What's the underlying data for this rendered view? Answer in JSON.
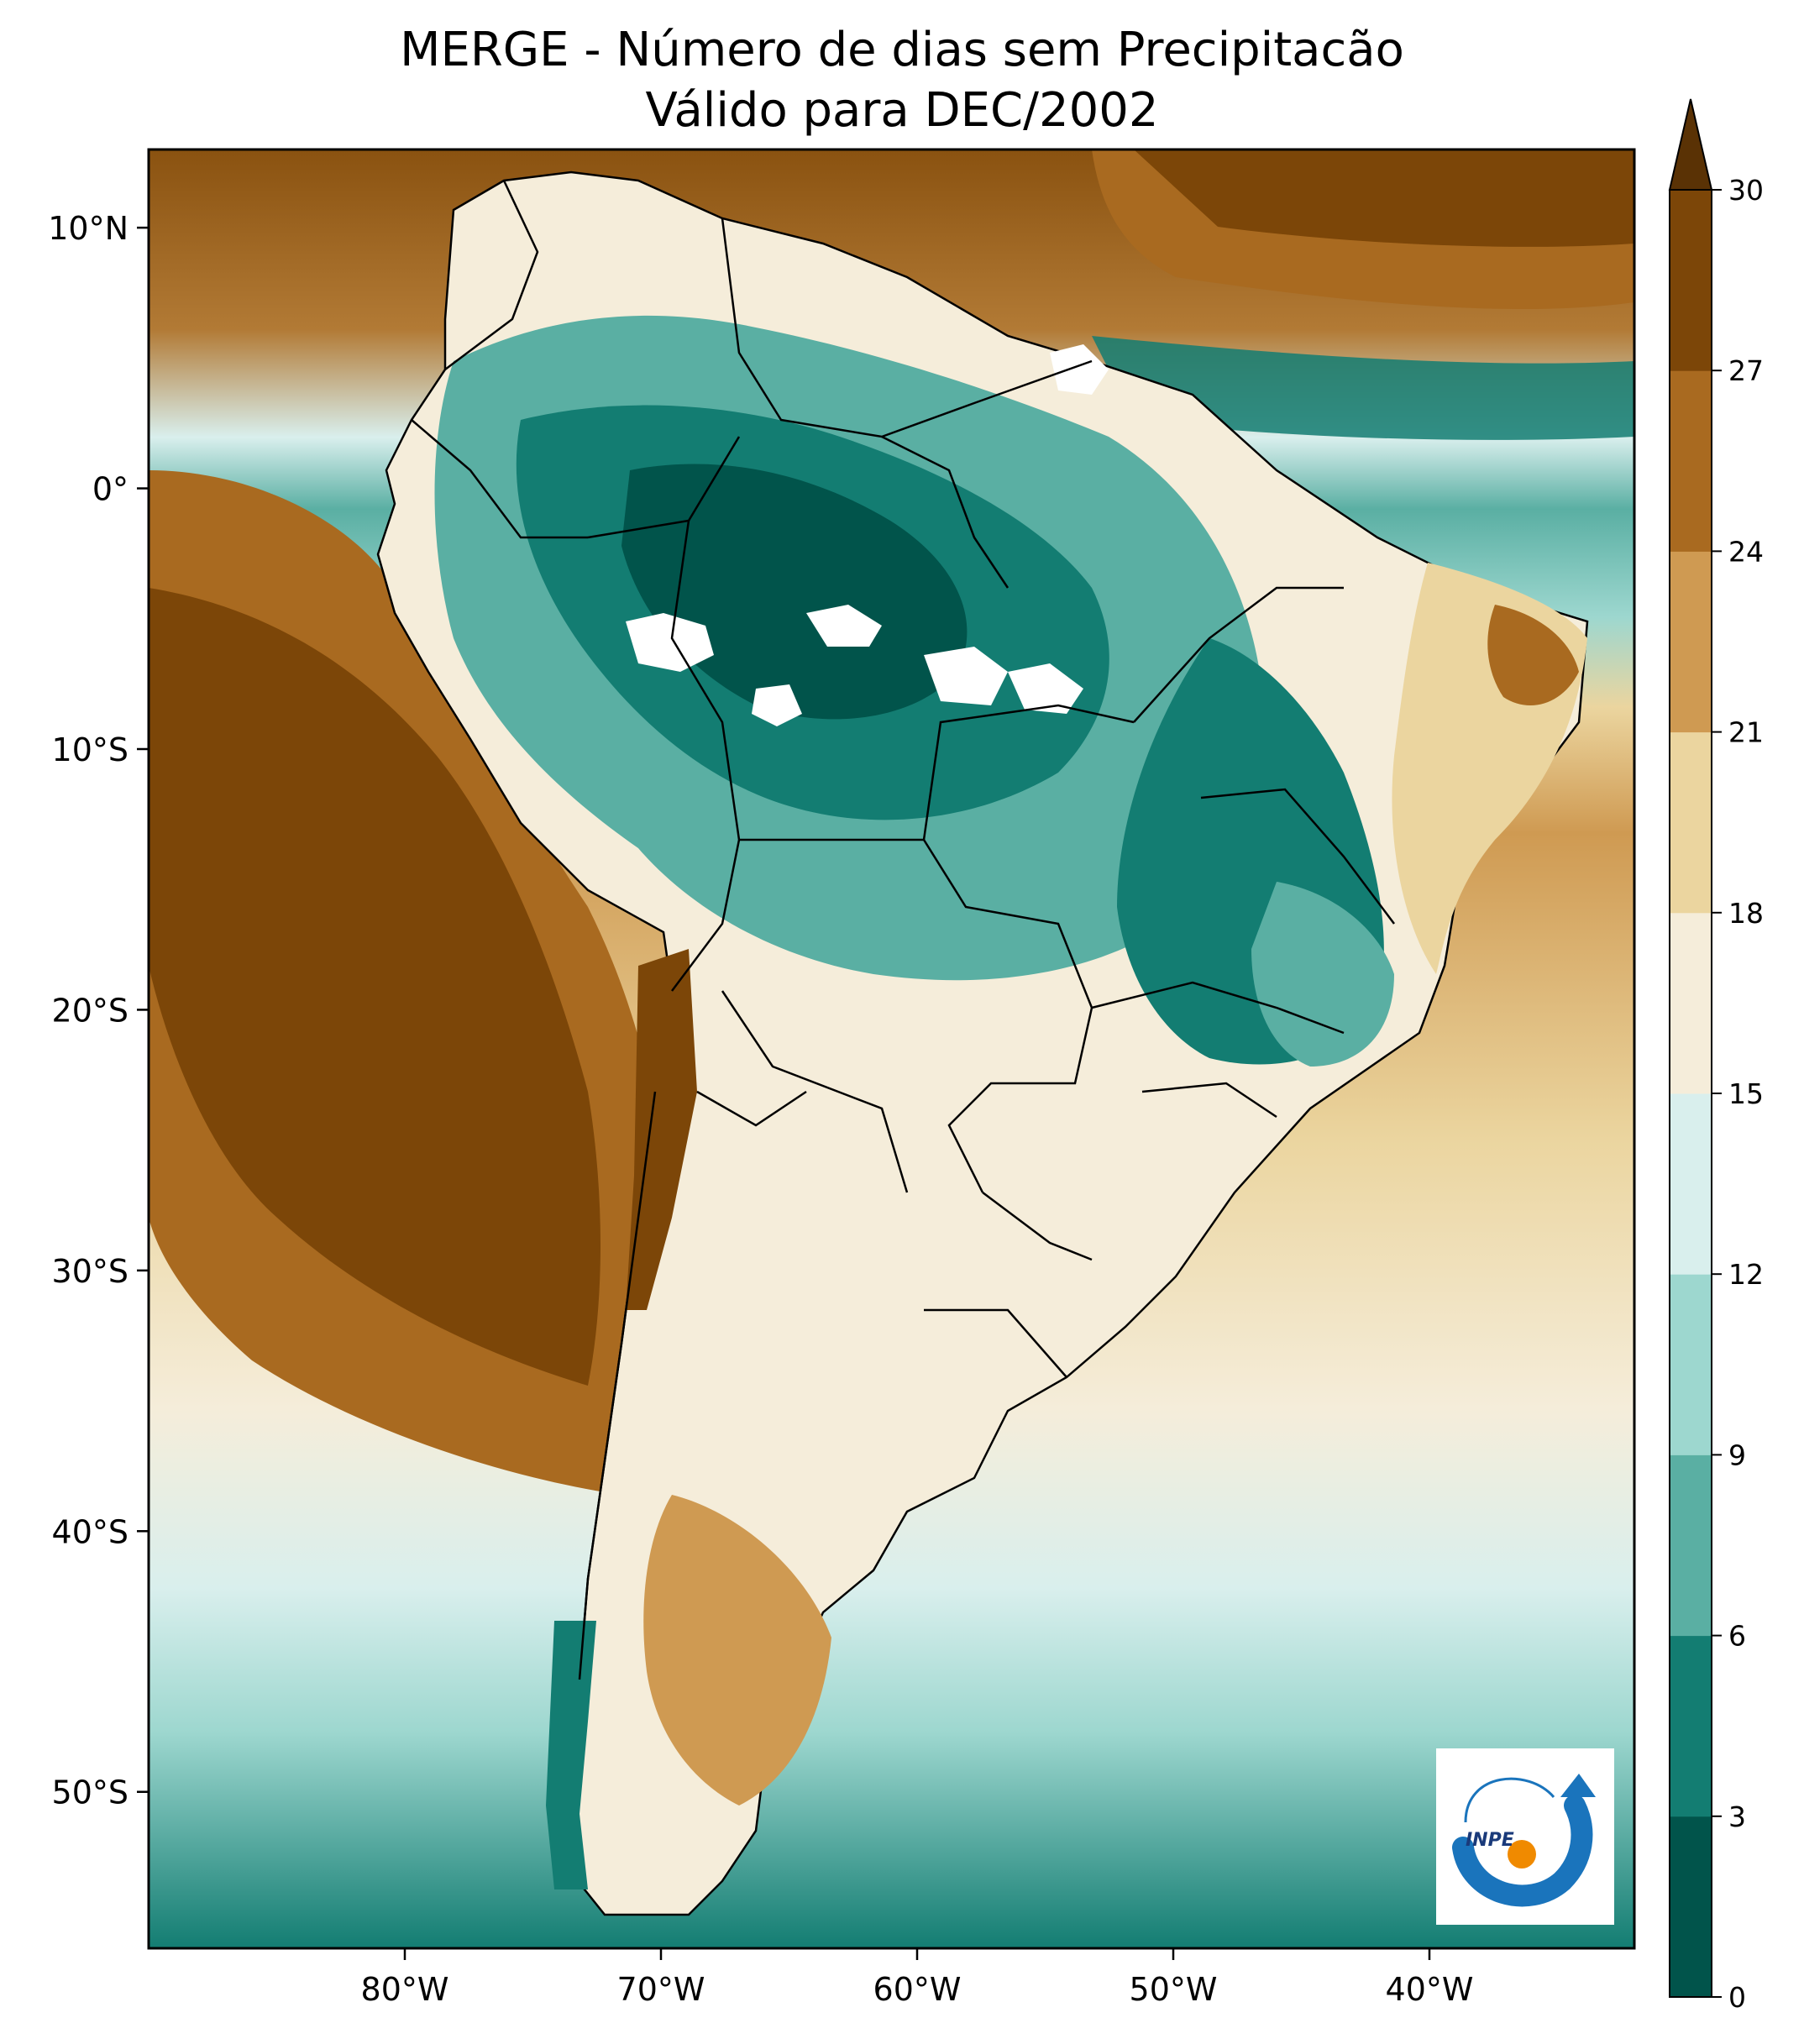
{
  "title": {
    "line1": "MERGE - Número de dias sem Precipitacão",
    "line2": "Válido para DEC/2002"
  },
  "map": {
    "region": "South America",
    "lon_range": [
      -90,
      -32
    ],
    "lat_range": [
      -56,
      13
    ],
    "x_ticks": [
      {
        "lon": -80,
        "label": "80°W"
      },
      {
        "lon": -70,
        "label": "70°W"
      },
      {
        "lon": -60,
        "label": "60°W"
      },
      {
        "lon": -50,
        "label": "50°W"
      },
      {
        "lon": -40,
        "label": "40°W"
      }
    ],
    "y_ticks": [
      {
        "lat": 10,
        "label": "10°N"
      },
      {
        "lat": 0,
        "label": "0°"
      },
      {
        "lat": -10,
        "label": "10°S"
      },
      {
        "lat": -20,
        "label": "20°S"
      },
      {
        "lat": -30,
        "label": "30°S"
      },
      {
        "lat": -40,
        "label": "40°S"
      },
      {
        "lat": -50,
        "label": "50°S"
      }
    ]
  },
  "colorbar": {
    "levels": [
      0,
      3,
      6,
      9,
      12,
      15,
      18,
      21,
      24,
      27,
      30
    ],
    "tick_labels": [
      "0",
      "3",
      "6",
      "9",
      "12",
      "15",
      "18",
      "21",
      "24",
      "27",
      "30"
    ],
    "colors": [
      "#01544b",
      "#137d72",
      "#5aafa3",
      "#9dd7cf",
      "#d9efed",
      "#f5edda",
      "#ebd59f",
      "#cf9a52",
      "#a96a20",
      "#7c4608"
    ],
    "extend": "max",
    "extend_color": "#5a3205"
  },
  "logo": {
    "text": "INPE",
    "colors": {
      "blue": "#1a74bc",
      "orange": "#f08a00"
    }
  }
}
